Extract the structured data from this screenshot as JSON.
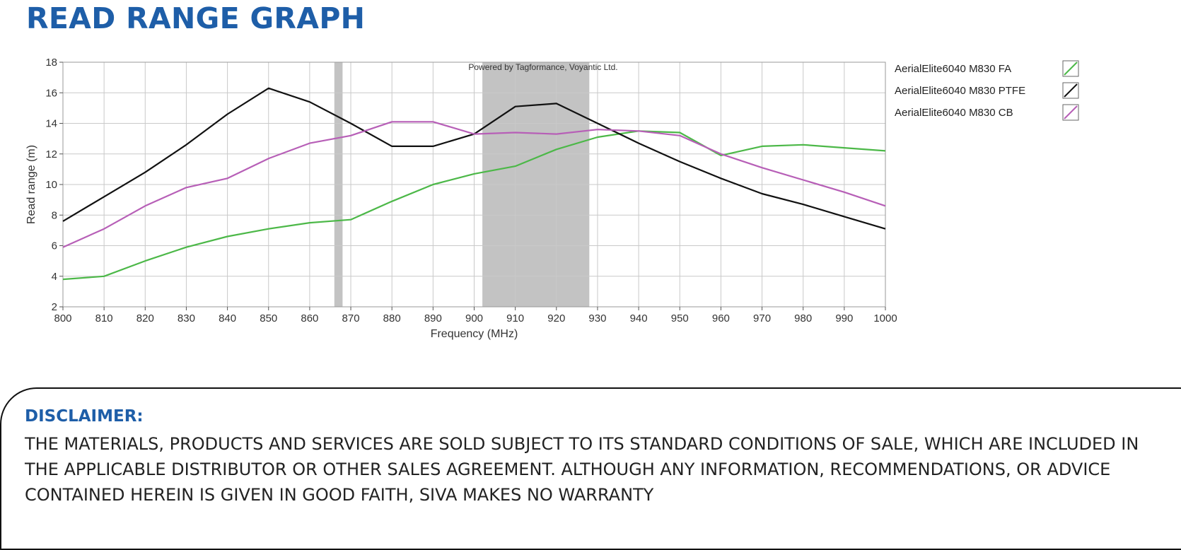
{
  "page": {
    "title": "READ RANGE GRAPH"
  },
  "disclaimer": {
    "title": "DISCLAIMER:",
    "text": "THE MATERIALS, PRODUCTS AND SERVICES ARE SOLD SUBJECT TO ITS STANDARD CONDITIONS OF SALE, WHICH ARE INCLUDED IN THE APPLICABLE DISTRIBUTOR OR OTHER SALES AGREEMENT. ALTHOUGH ANY INFORMATION, RECOMMENDATIONS, OR ADVICE CONTAINED HEREIN IS GIVEN IN GOOD FAITH, SIVA MAKES NO WARRANTY"
  },
  "chart_data": {
    "type": "line",
    "title": "",
    "watermark": "Powered by Tagformance, Voyantic Ltd.",
    "xlabel": "Frequency (MHz)",
    "ylabel": "Read range (m)",
    "xlim": [
      800,
      1000
    ],
    "ylim": [
      2,
      18
    ],
    "xticks": [
      800,
      810,
      820,
      830,
      840,
      850,
      860,
      870,
      880,
      890,
      900,
      910,
      920,
      930,
      940,
      950,
      960,
      970,
      980,
      990,
      1000
    ],
    "yticks": [
      2,
      4,
      6,
      8,
      10,
      12,
      14,
      16,
      18
    ],
    "grid": true,
    "legend_position": "right",
    "shaded_bands": [
      {
        "from": 866,
        "to": 868,
        "color": "#c3c3c3"
      },
      {
        "from": 902,
        "to": 928,
        "color": "#c3c3c3"
      }
    ],
    "x": [
      800,
      810,
      820,
      830,
      840,
      850,
      860,
      870,
      880,
      890,
      900,
      910,
      920,
      930,
      940,
      950,
      960,
      970,
      980,
      990,
      1000
    ],
    "series": [
      {
        "name": "AerialElite6040 M830 FA",
        "color": "#4cb848",
        "values": [
          3.8,
          4.0,
          5.0,
          5.9,
          6.6,
          7.1,
          7.5,
          7.7,
          8.9,
          10.0,
          10.7,
          11.2,
          12.3,
          13.1,
          13.5,
          13.4,
          11.9,
          12.5,
          12.6,
          12.4,
          12.2
        ]
      },
      {
        "name": "AerialElite6040 M830 PTFE",
        "color": "#111111",
        "values": [
          7.6,
          9.2,
          10.8,
          12.6,
          14.6,
          16.3,
          15.4,
          14.0,
          12.5,
          12.5,
          13.3,
          15.1,
          15.3,
          14.0,
          12.7,
          11.5,
          10.4,
          9.4,
          8.7,
          7.9,
          7.1
        ]
      },
      {
        "name": "AerialElite6040 M830 CB",
        "color": "#b75fb7",
        "values": [
          5.9,
          7.1,
          8.6,
          9.8,
          10.4,
          11.7,
          12.7,
          13.2,
          14.1,
          14.1,
          13.3,
          13.4,
          13.3,
          13.6,
          13.5,
          13.2,
          12.0,
          11.1,
          10.3,
          9.5,
          8.6
        ]
      }
    ]
  }
}
